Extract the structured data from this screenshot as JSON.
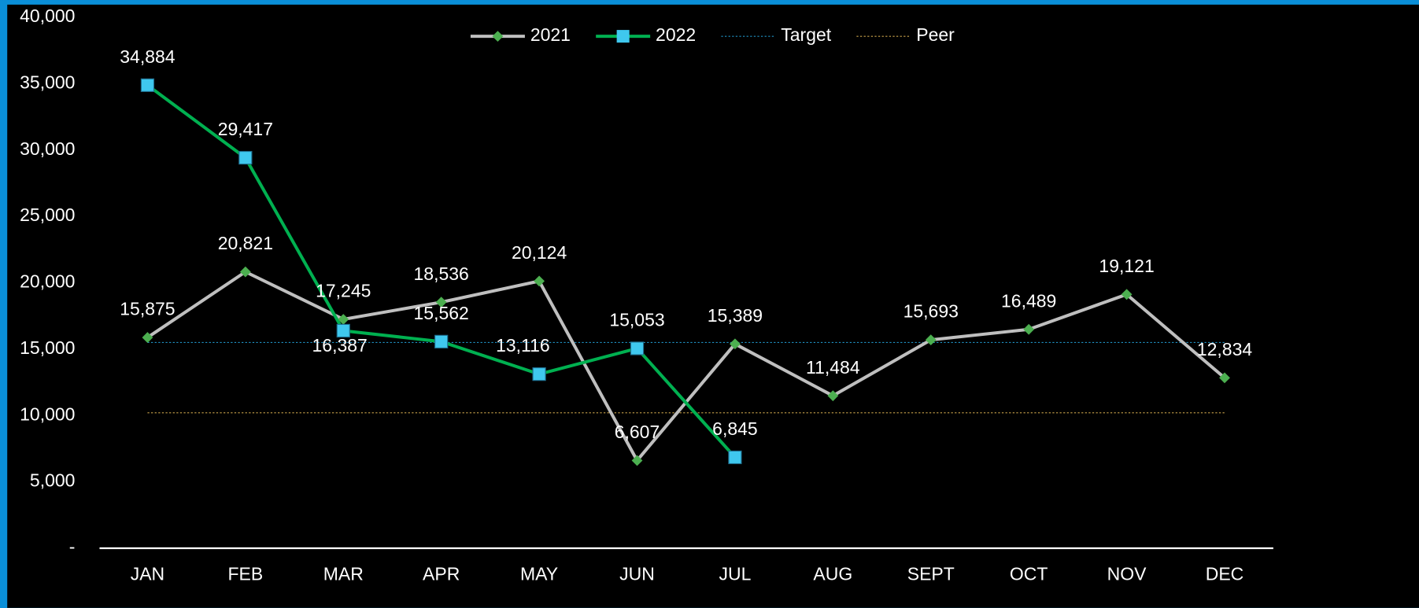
{
  "chart_data": {
    "type": "line",
    "categories": [
      "JAN",
      "FEB",
      "MAR",
      "APR",
      "MAY",
      "JUN",
      "JUL",
      "AUG",
      "SEPT",
      "OCT",
      "NOV",
      "DEC"
    ],
    "series": [
      {
        "name": "2021",
        "color": "#bfbfbf",
        "marker": "diamond",
        "marker_color": "#4caf50",
        "values": [
          15875,
          20821,
          17245,
          18536,
          20124,
          6607,
          15389,
          11484,
          15693,
          16489,
          19121,
          12834
        ],
        "value_labels": [
          "15,875",
          "20,821",
          "17,245",
          "18,536",
          "20,124",
          "6,607",
          "15,389",
          "11,484",
          "15,693",
          "16,489",
          "19,121",
          "12,834"
        ]
      },
      {
        "name": "2022",
        "color": "#00b050",
        "marker": "square",
        "marker_color": "#3fc8ee",
        "values": [
          34884,
          29417,
          16387,
          15562,
          13116,
          15053,
          6845,
          null,
          null,
          null,
          null,
          null
        ],
        "value_labels": [
          "34,884",
          "29,417",
          "16,387",
          "15,562",
          "13,116",
          "15,053",
          "6,845",
          null,
          null,
          null,
          null,
          null
        ]
      },
      {
        "name": "Target",
        "color": "#1f8fc0",
        "dashed": true,
        "values": [
          15500,
          15500,
          15500,
          15500,
          15500,
          15500,
          15500,
          15500,
          15500,
          15500,
          15500,
          15500
        ]
      },
      {
        "name": "Peer",
        "color": "#c9a24a",
        "dashed": true,
        "values": [
          10200,
          10200,
          10200,
          10200,
          10200,
          10200,
          10200,
          10200,
          10200,
          10200,
          10200,
          10200
        ]
      }
    ],
    "ylim": [
      0,
      40000
    ],
    "yticks": [
      {
        "value": 0,
        "label": "-"
      },
      {
        "value": 5000,
        "label": "5,000"
      },
      {
        "value": 10000,
        "label": "10,000"
      },
      {
        "value": 15000,
        "label": "15,000"
      },
      {
        "value": 20000,
        "label": "20,000"
      },
      {
        "value": 25000,
        "label": "25,000"
      },
      {
        "value": 30000,
        "label": "30,000"
      },
      {
        "value": 35000,
        "label": "35,000"
      },
      {
        "value": 40000,
        "label": "40,000"
      }
    ],
    "grid": false,
    "legend": "top"
  }
}
